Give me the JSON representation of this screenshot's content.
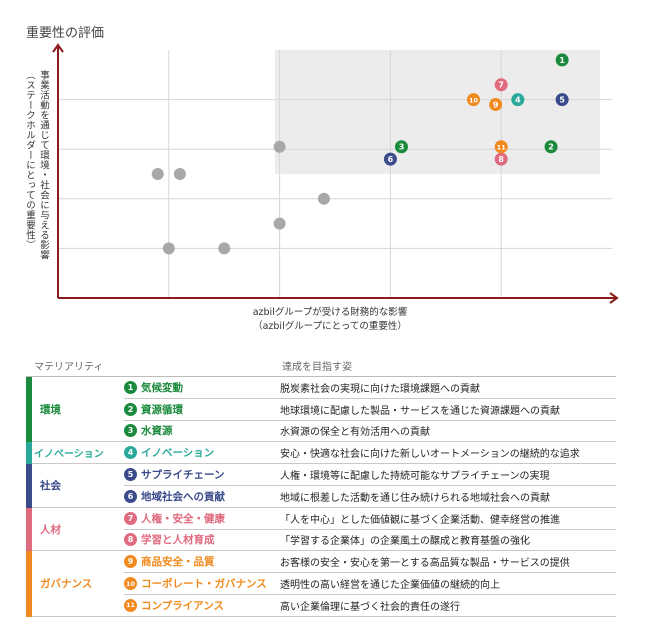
{
  "chart_data": {
    "type": "scatter",
    "title": "重要性の評価",
    "xlabel": [
      "azbilグループが受ける財務的な影響",
      "（azbilグループにとっての重要性）"
    ],
    "ylabel": [
      "事業活動を通じて環境・社会に与える影響",
      "（ステークホルダーにとっての重要性）"
    ],
    "xlim": [
      0,
      10
    ],
    "ylim": [
      0,
      10
    ],
    "grid": true,
    "highlight_region": {
      "x": [
        5,
        10
      ],
      "y": [
        5,
        10
      ]
    },
    "numbered_points": [
      {
        "label": "1",
        "x": 9.1,
        "y": 9.6,
        "color": "#1a8a3c"
      },
      {
        "label": "2",
        "x": 8.9,
        "y": 6.1,
        "color": "#1a8a3c"
      },
      {
        "label": "3",
        "x": 6.2,
        "y": 6.1,
        "color": "#1a8a3c"
      },
      {
        "label": "4",
        "x": 8.3,
        "y": 8.0,
        "color": "#2aa99a"
      },
      {
        "label": "5",
        "x": 9.1,
        "y": 8.0,
        "color": "#3a4a8a"
      },
      {
        "label": "6",
        "x": 6.0,
        "y": 5.6,
        "color": "#3a4a8a"
      },
      {
        "label": "7",
        "x": 8.0,
        "y": 8.6,
        "color": "#e06a7e"
      },
      {
        "label": "8",
        "x": 8.0,
        "y": 5.6,
        "color": "#e06a7e"
      },
      {
        "label": "9",
        "x": 7.9,
        "y": 7.8,
        "color": "#f08a1e"
      },
      {
        "label": "10",
        "x": 7.5,
        "y": 8.0,
        "color": "#f08a1e"
      },
      {
        "label": "11",
        "x": 8.0,
        "y": 6.1,
        "color": "#f08a1e"
      }
    ],
    "other_points": [
      {
        "x": 1.8,
        "y": 5.0
      },
      {
        "x": 2.2,
        "y": 5.0
      },
      {
        "x": 4.0,
        "y": 6.1
      },
      {
        "x": 4.8,
        "y": 4.0
      },
      {
        "x": 4.0,
        "y": 3.0
      },
      {
        "x": 2.0,
        "y": 2.0
      },
      {
        "x": 3.0,
        "y": 2.0
      }
    ]
  },
  "table": {
    "headers": {
      "materiality": "マテリアリティ",
      "goal": "達成を目指す姿"
    },
    "categories": [
      {
        "name": "環境",
        "color": "#1a8a3c",
        "items": [
          {
            "num": "1",
            "name": "気候変動",
            "goal": "脱炭素社会の実現に向けた環境課題への貢献"
          },
          {
            "num": "2",
            "name": "資源循環",
            "goal": "地球環境に配慮した製品・サービスを通じた資源課題への貢献"
          },
          {
            "num": "3",
            "name": "水資源",
            "goal": "水資源の保全と有効活用への貢献"
          }
        ]
      },
      {
        "name": "イノベーション",
        "color": "#2aa99a",
        "items": [
          {
            "num": "4",
            "name": "イノベーション",
            "goal": "安心・快適な社会に向けた新しいオートメーションの継続的な追求"
          }
        ]
      },
      {
        "name": "社会",
        "color": "#3a4a8a",
        "items": [
          {
            "num": "5",
            "name": "サプライチェーン",
            "goal": "人権・環境等に配慮した持続可能なサプライチェーンの実現"
          },
          {
            "num": "6",
            "name": "地域社会への貢献",
            "goal": "地域に根差した活動を通じ住み続けられる地域社会への貢献"
          }
        ]
      },
      {
        "name": "人材",
        "color": "#e06a7e",
        "items": [
          {
            "num": "7",
            "name": "人権・安全・健康",
            "goal": "「人を中心」とした価値観に基づく企業活動、健幸経営の推進"
          },
          {
            "num": "8",
            "name": "学習と人材育成",
            "goal": "「学習する企業体」の企業風土の醸成と教育基盤の強化"
          }
        ]
      },
      {
        "name": "ガバナンス",
        "color": "#f08a1e",
        "items": [
          {
            "num": "9",
            "name": "商品安全・品質",
            "goal": "お客様の安全・安心を第一とする高品質な製品・サービスの提供"
          },
          {
            "num": "10",
            "name": "コーポレート・ガバナンス",
            "goal": "透明性の高い経営を通じた企業価値の継続的向上"
          },
          {
            "num": "11",
            "name": "コンプライアンス",
            "goal": "高い企業倫理に基づく社会的責任の遂行"
          }
        ]
      }
    ]
  }
}
